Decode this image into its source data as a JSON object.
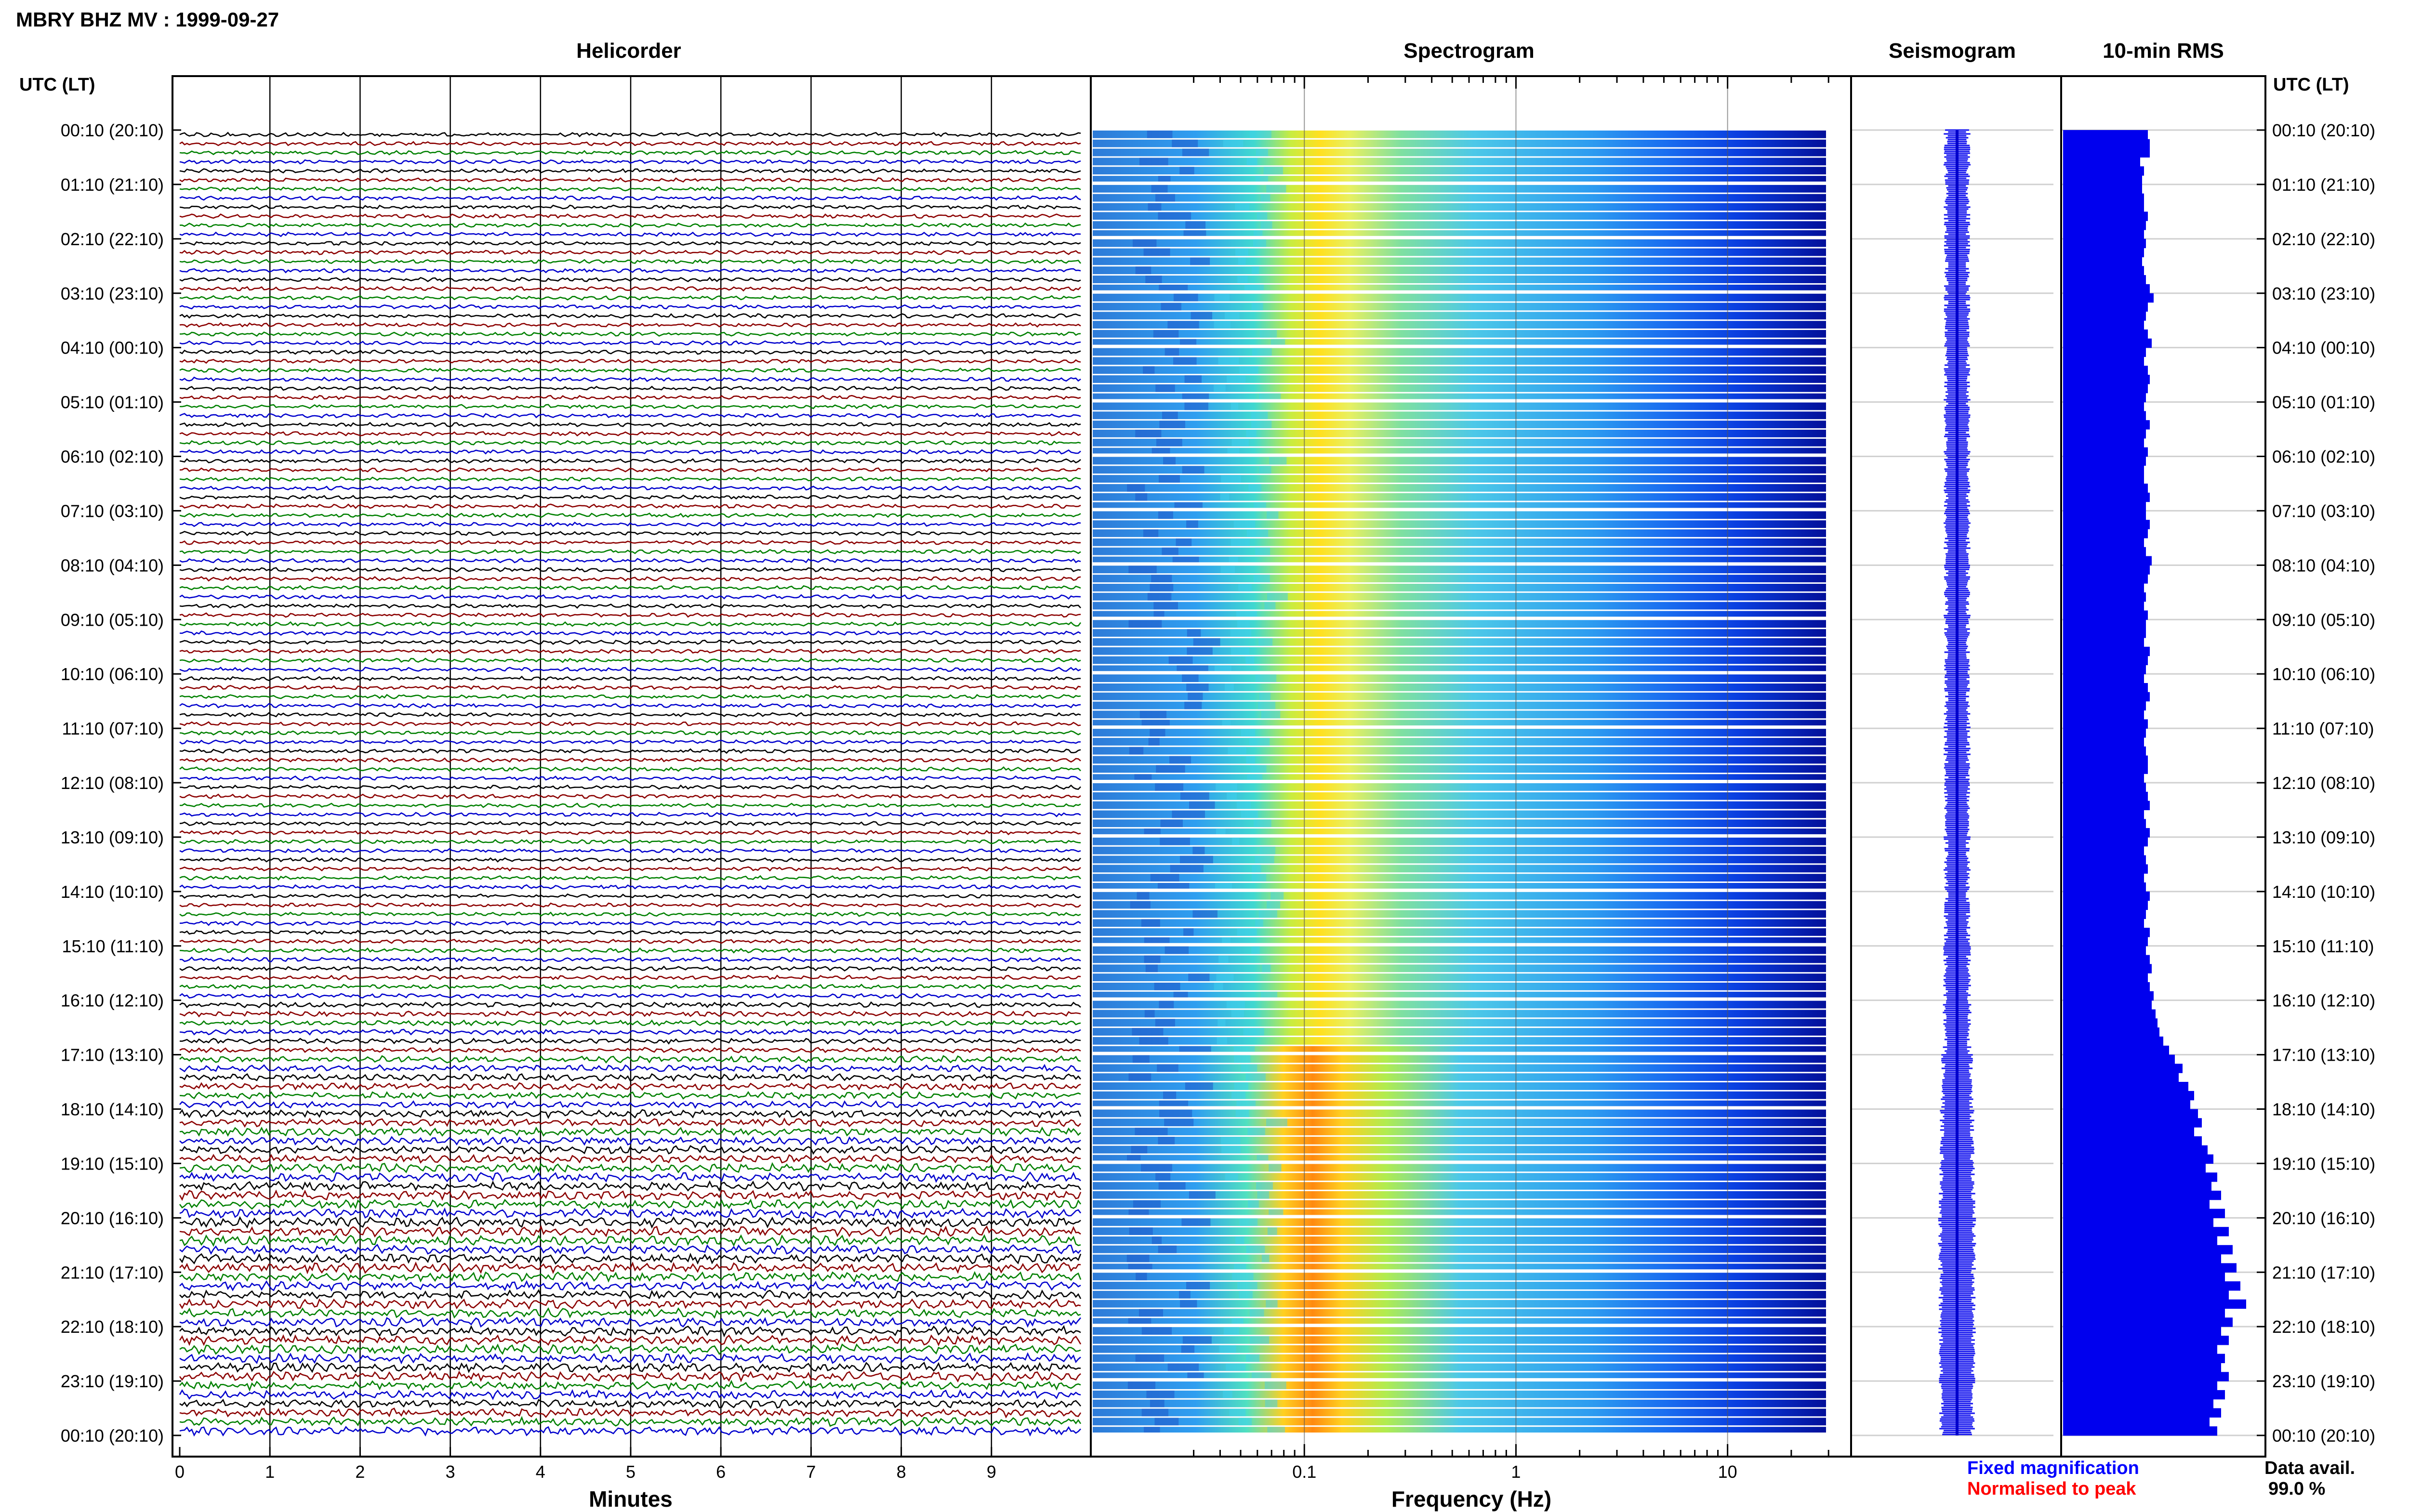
{
  "header": {
    "title": "MBRY BHZ MV : 1999-09-27"
  },
  "panels": {
    "helicorder": "Helicorder",
    "spectrogram": "Spectrogram",
    "seismogram": "Seismogram",
    "rms": "10-min RMS"
  },
  "time_axis": {
    "label_left": "UTC (LT)",
    "label_right": "UTC (LT)",
    "ticks": [
      "00:10 (20:10)",
      "01:10 (21:10)",
      "02:10 (22:10)",
      "03:10 (23:10)",
      "04:10 (00:10)",
      "05:10 (01:10)",
      "06:10 (02:10)",
      "07:10 (03:10)",
      "08:10 (04:10)",
      "09:10 (05:10)",
      "10:10 (06:10)",
      "11:10 (07:10)",
      "12:10 (08:10)",
      "13:10 (09:10)",
      "14:10 (10:10)",
      "15:10 (11:10)",
      "16:10 (12:10)",
      "17:10 (13:10)",
      "18:10 (14:10)",
      "19:10 (15:10)",
      "20:10 (16:10)",
      "21:10 (17:10)",
      "22:10 (18:10)",
      "23:10 (19:10)",
      "00:10 (20:10)"
    ]
  },
  "helicorder_axis": {
    "label": "Minutes",
    "ticks": [
      "0",
      "1",
      "2",
      "3",
      "4",
      "5",
      "6",
      "7",
      "8",
      "9"
    ]
  },
  "spectrogram_axis": {
    "label": "Frequency (Hz)",
    "ticks": [
      "0.1",
      "1",
      "10"
    ]
  },
  "legend": {
    "fixed": "Fixed magnification",
    "normalised": "Normalised to peak",
    "fixed_color": "#0000ff",
    "normalised_color": "#ff0000"
  },
  "availability": {
    "label": "Data avail.",
    "value": "99.0 %"
  },
  "chart_data": [
    {
      "type": "line",
      "title": "Helicorder",
      "xlabel": "Minutes",
      "xlim": [
        0,
        10
      ],
      "rows": 144,
      "trace_colors": [
        "#000000",
        "#8b0000",
        "#008000",
        "#0000cd"
      ],
      "note_amplitude_by_hour": [
        1.0,
        1.0,
        1.0,
        1.0,
        1.0,
        1.0,
        1.0,
        1.0,
        1.0,
        1.0,
        1.0,
        1.0,
        1.0,
        1.0,
        1.0,
        1.1,
        1.3,
        1.7,
        2.0,
        2.3,
        2.5,
        2.3,
        2.4,
        2.2
      ]
    },
    {
      "type": "heatmap",
      "title": "Spectrogram",
      "xlabel": "Frequency (Hz)",
      "xscale": "log",
      "xlim": [
        0.025,
        40
      ],
      "peak_frequency_hz": 0.3
    },
    {
      "type": "bar",
      "title": "10-min RMS",
      "orientation": "horizontal",
      "values": [
        0.44,
        0.45,
        0.45,
        0.4,
        0.42,
        0.41,
        0.41,
        0.42,
        0.42,
        0.44,
        0.43,
        0.42,
        0.43,
        0.42,
        0.41,
        0.42,
        0.43,
        0.45,
        0.47,
        0.44,
        0.43,
        0.42,
        0.44,
        0.46,
        0.43,
        0.42,
        0.44,
        0.45,
        0.44,
        0.43,
        0.42,
        0.43,
        0.45,
        0.43,
        0.42,
        0.44,
        0.43,
        0.42,
        0.42,
        0.44,
        0.45,
        0.43,
        0.43,
        0.45,
        0.44,
        0.42,
        0.43,
        0.46,
        0.45,
        0.44,
        0.42,
        0.43,
        0.42,
        0.44,
        0.43,
        0.43,
        0.42,
        0.45,
        0.44,
        0.43,
        0.42,
        0.44,
        0.45,
        0.43,
        0.42,
        0.44,
        0.43,
        0.42,
        0.43,
        0.44,
        0.44,
        0.42,
        0.43,
        0.44,
        0.45,
        0.42,
        0.43,
        0.45,
        0.44,
        0.42,
        0.43,
        0.44,
        0.42,
        0.43,
        0.45,
        0.44,
        0.43,
        0.42,
        0.45,
        0.44,
        0.43,
        0.45,
        0.46,
        0.44,
        0.45,
        0.47,
        0.46,
        0.48,
        0.49,
        0.5,
        0.52,
        0.55,
        0.58,
        0.62,
        0.6,
        0.65,
        0.68,
        0.66,
        0.7,
        0.72,
        0.68,
        0.72,
        0.75,
        0.78,
        0.74,
        0.8,
        0.77,
        0.82,
        0.76,
        0.84,
        0.78,
        0.86,
        0.8,
        0.88,
        0.82,
        0.9,
        0.84,
        0.92,
        0.86,
        0.95,
        0.84,
        0.88,
        0.82,
        0.86,
        0.8,
        0.84,
        0.82,
        0.86,
        0.8,
        0.84,
        0.78,
        0.82,
        0.76,
        0.8
      ]
    }
  ]
}
